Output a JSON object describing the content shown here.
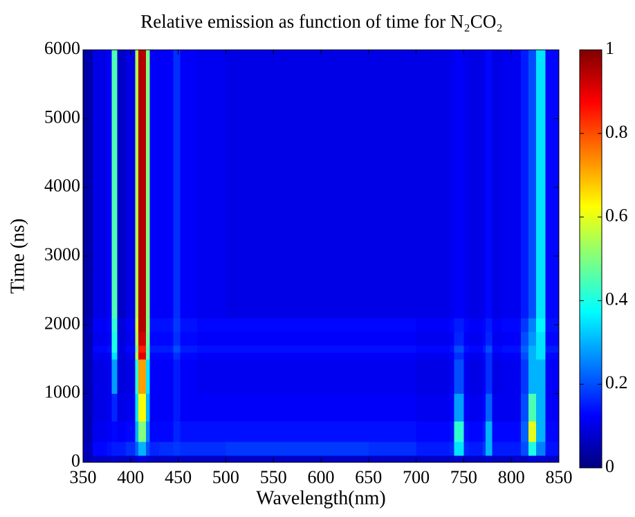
{
  "chart_data": {
    "type": "heatmap",
    "title": "Relative emission as function of time for N₂CO₂",
    "x_label": "Wavelength(nm)",
    "y_label": "Time (ns)",
    "colormap": "jet",
    "x": [
      350,
      360,
      375,
      380,
      386,
      395,
      405,
      408,
      412,
      416,
      420,
      430,
      440,
      445,
      452,
      470,
      500,
      550,
      600,
      650,
      700,
      735,
      740,
      750,
      755,
      770,
      773,
      780,
      790,
      810,
      818,
      826,
      836,
      850
    ],
    "y": [
      0,
      100,
      300,
      600,
      1000,
      1500,
      1600,
      1700,
      1900,
      2100,
      3000,
      4000,
      5000,
      6000
    ],
    "z": [
      [
        0.05,
        0.07,
        0.07,
        0.08,
        0.07,
        0.07,
        0.08,
        0.1,
        0.1,
        0.08,
        0.07,
        0.07,
        0.07,
        0.08,
        0.07,
        0.07,
        0.07,
        0.07,
        0.07,
        0.07,
        0.07,
        0.07,
        0.08,
        0.07,
        0.07,
        0.07,
        0.08,
        0.07,
        0.07,
        0.07,
        0.09,
        0.08,
        0.07
      ],
      [
        0.06,
        0.13,
        0.14,
        0.15,
        0.15,
        0.17,
        0.22,
        0.3,
        0.3,
        0.2,
        0.16,
        0.17,
        0.17,
        0.18,
        0.17,
        0.17,
        0.18,
        0.18,
        0.18,
        0.17,
        0.15,
        0.16,
        0.35,
        0.16,
        0.15,
        0.18,
        0.3,
        0.15,
        0.15,
        0.2,
        0.4,
        0.25,
        0.14
      ],
      [
        0.05,
        0.11,
        0.12,
        0.13,
        0.12,
        0.13,
        0.3,
        0.5,
        0.5,
        0.25,
        0.13,
        0.13,
        0.13,
        0.16,
        0.14,
        0.14,
        0.14,
        0.14,
        0.14,
        0.14,
        0.13,
        0.14,
        0.42,
        0.14,
        0.13,
        0.15,
        0.3,
        0.13,
        0.13,
        0.22,
        0.6,
        0.3,
        0.13
      ],
      [
        0.05,
        0.1,
        0.11,
        0.16,
        0.1,
        0.11,
        0.35,
        0.62,
        0.62,
        0.3,
        0.12,
        0.12,
        0.12,
        0.15,
        0.12,
        0.12,
        0.12,
        0.12,
        0.12,
        0.12,
        0.11,
        0.12,
        0.28,
        0.12,
        0.11,
        0.13,
        0.22,
        0.11,
        0.11,
        0.2,
        0.45,
        0.3,
        0.12
      ],
      [
        0.05,
        0.1,
        0.11,
        0.28,
        0.09,
        0.1,
        0.42,
        0.72,
        0.72,
        0.35,
        0.12,
        0.12,
        0.12,
        0.15,
        0.12,
        0.11,
        0.11,
        0.11,
        0.11,
        0.11,
        0.1,
        0.11,
        0.2,
        0.11,
        0.1,
        0.12,
        0.17,
        0.1,
        0.11,
        0.18,
        0.3,
        0.3,
        0.12
      ],
      [
        0.05,
        0.11,
        0.12,
        0.35,
        0.09,
        0.11,
        0.55,
        0.9,
        0.9,
        0.45,
        0.13,
        0.13,
        0.13,
        0.17,
        0.13,
        0.12,
        0.12,
        0.12,
        0.12,
        0.12,
        0.11,
        0.12,
        0.17,
        0.12,
        0.11,
        0.13,
        0.17,
        0.11,
        0.12,
        0.2,
        0.3,
        0.35,
        0.13
      ],
      [
        0.05,
        0.13,
        0.14,
        0.4,
        0.1,
        0.13,
        0.5,
        0.85,
        0.85,
        0.45,
        0.15,
        0.15,
        0.15,
        0.2,
        0.15,
        0.14,
        0.14,
        0.14,
        0.14,
        0.14,
        0.13,
        0.14,
        0.2,
        0.14,
        0.13,
        0.15,
        0.2,
        0.13,
        0.14,
        0.22,
        0.3,
        0.35,
        0.15
      ],
      [
        0.05,
        0.11,
        0.12,
        0.4,
        0.09,
        0.11,
        0.55,
        0.92,
        0.92,
        0.48,
        0.13,
        0.13,
        0.13,
        0.17,
        0.13,
        0.12,
        0.12,
        0.12,
        0.12,
        0.12,
        0.11,
        0.12,
        0.16,
        0.12,
        0.11,
        0.13,
        0.16,
        0.11,
        0.12,
        0.2,
        0.27,
        0.35,
        0.13
      ],
      [
        0.05,
        0.12,
        0.13,
        0.42,
        0.09,
        0.12,
        0.58,
        0.95,
        0.95,
        0.5,
        0.14,
        0.14,
        0.14,
        0.18,
        0.14,
        0.13,
        0.13,
        0.13,
        0.13,
        0.13,
        0.12,
        0.13,
        0.15,
        0.13,
        0.12,
        0.13,
        0.15,
        0.12,
        0.13,
        0.18,
        0.25,
        0.37,
        0.14
      ],
      [
        0.04,
        0.1,
        0.12,
        0.45,
        0.07,
        0.1,
        0.55,
        0.95,
        0.95,
        0.5,
        0.12,
        0.12,
        0.12,
        0.17,
        0.12,
        0.11,
        0.1,
        0.1,
        0.1,
        0.1,
        0.1,
        0.11,
        0.12,
        0.11,
        0.1,
        0.11,
        0.13,
        0.1,
        0.11,
        0.15,
        0.2,
        0.35,
        0.13
      ],
      [
        0.04,
        0.1,
        0.12,
        0.45,
        0.07,
        0.1,
        0.55,
        0.95,
        0.95,
        0.5,
        0.12,
        0.12,
        0.12,
        0.17,
        0.12,
        0.11,
        0.1,
        0.1,
        0.1,
        0.1,
        0.1,
        0.11,
        0.12,
        0.11,
        0.1,
        0.11,
        0.13,
        0.1,
        0.11,
        0.15,
        0.2,
        0.35,
        0.13
      ],
      [
        0.04,
        0.1,
        0.12,
        0.45,
        0.07,
        0.1,
        0.55,
        0.95,
        0.95,
        0.5,
        0.12,
        0.12,
        0.12,
        0.17,
        0.12,
        0.11,
        0.1,
        0.1,
        0.1,
        0.1,
        0.1,
        0.11,
        0.12,
        0.11,
        0.1,
        0.11,
        0.13,
        0.1,
        0.11,
        0.15,
        0.2,
        0.35,
        0.13
      ],
      [
        0.04,
        0.1,
        0.12,
        0.45,
        0.07,
        0.1,
        0.55,
        0.95,
        0.95,
        0.5,
        0.12,
        0.12,
        0.12,
        0.17,
        0.12,
        0.11,
        0.1,
        0.1,
        0.1,
        0.1,
        0.1,
        0.11,
        0.12,
        0.11,
        0.1,
        0.11,
        0.13,
        0.1,
        0.11,
        0.15,
        0.2,
        0.35,
        0.13
      ]
    ],
    "xlim": [
      350,
      850
    ],
    "xticks": [
      350,
      400,
      450,
      500,
      550,
      600,
      650,
      700,
      750,
      800,
      850
    ],
    "ylim": [
      0,
      6000
    ],
    "yticks": [
      0,
      1000,
      2000,
      3000,
      4000,
      5000,
      6000
    ],
    "clim": [
      0,
      1
    ],
    "cticks": [
      0,
      0.2,
      0.4,
      0.6,
      0.8,
      1
    ]
  }
}
